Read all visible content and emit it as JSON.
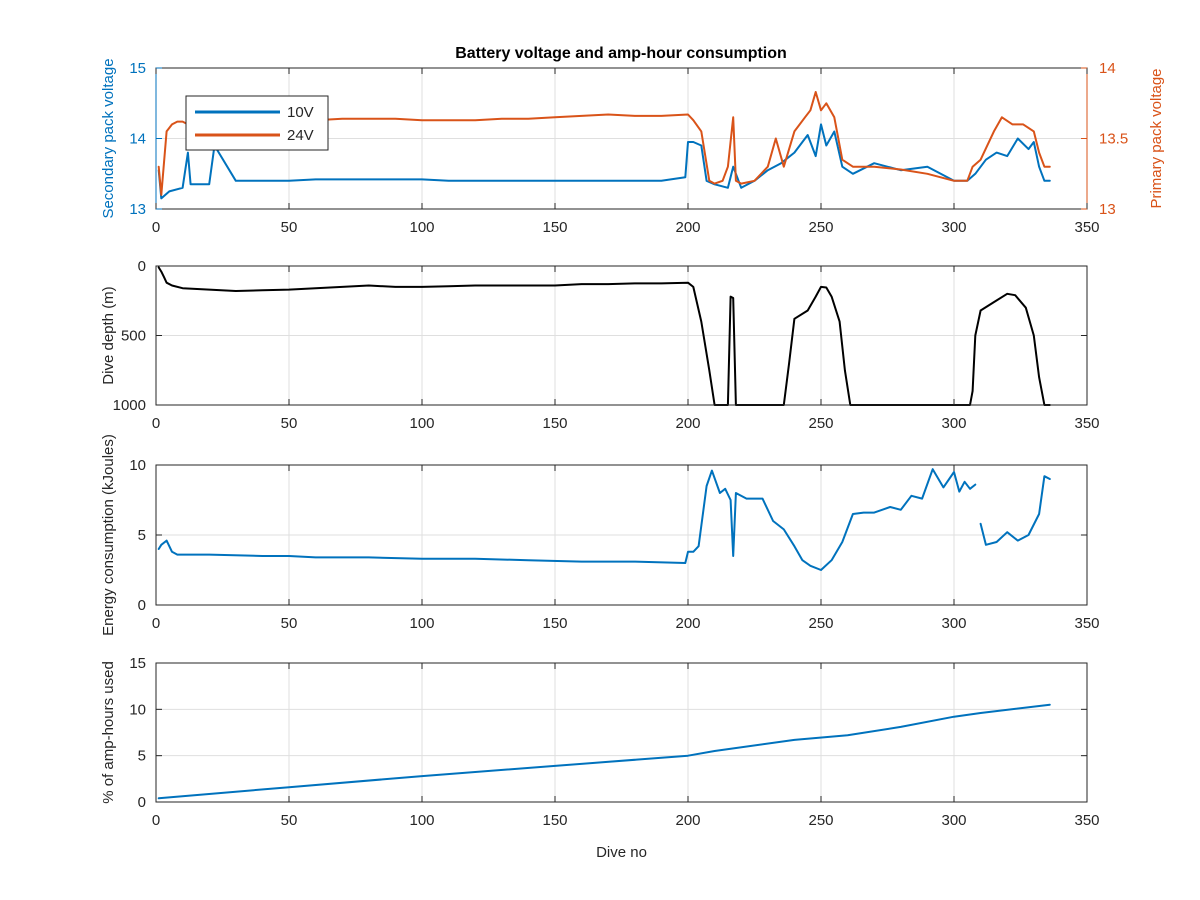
{
  "figure_title": "Battery voltage and amp-hour consumption",
  "colors": {
    "blue": "#0072bd",
    "orange": "#d95319",
    "black": "#000000",
    "axis": "#262626",
    "grid": "#dfdfdf"
  },
  "chart_data": [
    {
      "type": "line",
      "title": "Battery voltage and amp-hour consumption",
      "xlabel": "",
      "ylabel_left": "Secondary pack voltage",
      "ylabel_right": "Primary pack voltage",
      "xlim": [
        0,
        350
      ],
      "ylim_left": [
        13,
        15
      ],
      "ylim_right": [
        13,
        14
      ],
      "x_ticks": [
        "0",
        "50",
        "100",
        "150",
        "200",
        "250",
        "300",
        "350"
      ],
      "y_ticks_left": [
        "13",
        "14",
        "15"
      ],
      "y_ticks_right": [
        "13",
        "13.5",
        "14"
      ],
      "grid": true,
      "legend": {
        "location": "top-left",
        "entries": [
          "10V",
          "24V"
        ]
      },
      "series": [
        {
          "name": "10V",
          "axis": "left",
          "color": "#0072bd",
          "x": [
            1,
            2,
            5,
            10,
            12,
            13,
            20,
            22,
            30,
            40,
            50,
            60,
            70,
            80,
            90,
            100,
            110,
            120,
            130,
            140,
            150,
            160,
            170,
            180,
            190,
            199,
            200,
            202,
            205,
            207,
            210,
            215,
            217,
            220,
            225,
            230,
            235,
            240,
            245,
            248,
            250,
            252,
            255,
            258,
            262,
            270,
            280,
            290,
            300,
            305,
            308,
            312,
            316,
            320,
            324,
            328,
            330,
            332,
            334,
            336
          ],
          "y": [
            13.55,
            13.15,
            13.25,
            13.3,
            13.8,
            13.35,
            13.35,
            13.9,
            13.4,
            13.4,
            13.4,
            13.42,
            13.42,
            13.42,
            13.42,
            13.42,
            13.4,
            13.4,
            13.4,
            13.4,
            13.4,
            13.4,
            13.4,
            13.4,
            13.4,
            13.45,
            13.95,
            13.95,
            13.9,
            13.4,
            13.35,
            13.3,
            13.6,
            13.3,
            13.4,
            13.55,
            13.65,
            13.8,
            14.05,
            13.75,
            14.2,
            13.9,
            14.1,
            13.6,
            13.5,
            13.65,
            13.55,
            13.6,
            13.4,
            13.4,
            13.5,
            13.7,
            13.8,
            13.75,
            14.0,
            13.85,
            13.95,
            13.6,
            13.4,
            13.4
          ]
        },
        {
          "name": "24V",
          "axis": "right",
          "color": "#d95319",
          "x": [
            1,
            2,
            4,
            6,
            8,
            10,
            12,
            14,
            20,
            30,
            40,
            50,
            60,
            70,
            80,
            90,
            100,
            110,
            120,
            130,
            140,
            150,
            160,
            170,
            180,
            190,
            200,
            202,
            205,
            208,
            210,
            213,
            215,
            217,
            218,
            220,
            225,
            230,
            233,
            236,
            240,
            244,
            246,
            248,
            250,
            252,
            255,
            258,
            262,
            270,
            280,
            290,
            300,
            305,
            307,
            310,
            315,
            318,
            322,
            326,
            330,
            332,
            334,
            336
          ],
          "y": [
            13.3,
            13.1,
            13.55,
            13.6,
            13.62,
            13.62,
            13.6,
            13.6,
            13.6,
            13.61,
            13.62,
            13.62,
            13.63,
            13.64,
            13.64,
            13.64,
            13.63,
            13.63,
            13.63,
            13.64,
            13.64,
            13.65,
            13.66,
            13.67,
            13.66,
            13.66,
            13.67,
            13.63,
            13.55,
            13.2,
            13.18,
            13.2,
            13.3,
            13.65,
            13.2,
            13.18,
            13.2,
            13.3,
            13.5,
            13.3,
            13.55,
            13.65,
            13.7,
            13.83,
            13.7,
            13.75,
            13.65,
            13.35,
            13.3,
            13.3,
            13.28,
            13.25,
            13.2,
            13.2,
            13.3,
            13.35,
            13.55,
            13.65,
            13.6,
            13.6,
            13.55,
            13.4,
            13.3,
            13.3
          ]
        }
      ]
    },
    {
      "type": "line",
      "title": "",
      "xlabel": "",
      "ylabel": "Dive depth (m)",
      "xlim": [
        0,
        350
      ],
      "ylim": [
        0,
        1000
      ],
      "y_reversed": true,
      "x_ticks": [
        "0",
        "50",
        "100",
        "150",
        "200",
        "250",
        "300",
        "350"
      ],
      "y_ticks": [
        "0",
        "500",
        "1000"
      ],
      "grid": true,
      "series": [
        {
          "color": "#000000",
          "x": [
            1,
            2,
            3,
            4,
            6,
            10,
            20,
            30,
            40,
            50,
            60,
            70,
            80,
            90,
            100,
            110,
            120,
            130,
            140,
            150,
            160,
            170,
            180,
            190,
            200,
            202,
            205,
            208,
            210,
            213,
            215,
            216,
            217,
            218,
            220,
            230,
            236,
            238,
            240,
            245,
            248,
            250,
            252,
            254,
            257,
            259,
            261,
            270,
            280,
            290,
            300,
            306,
            307,
            308,
            310,
            315,
            320,
            323,
            327,
            330,
            332,
            334,
            336
          ],
          "y": [
            10,
            40,
            80,
            120,
            140,
            160,
            170,
            180,
            175,
            170,
            160,
            150,
            140,
            150,
            150,
            145,
            140,
            140,
            140,
            140,
            130,
            130,
            125,
            125,
            120,
            150,
            400,
            750,
            1000,
            1000,
            1000,
            220,
            230,
            1000,
            1000,
            1000,
            1000,
            700,
            380,
            320,
            220,
            150,
            155,
            220,
            400,
            750,
            1000,
            1000,
            1000,
            1000,
            1000,
            1000,
            900,
            500,
            320,
            260,
            200,
            210,
            300,
            500,
            800,
            1000,
            1000
          ]
        }
      ]
    },
    {
      "type": "line",
      "title": "",
      "xlabel": "",
      "ylabel": "Energy consumption (kJoules)",
      "xlim": [
        0,
        350
      ],
      "ylim": [
        0,
        10
      ],
      "x_ticks": [
        "0",
        "50",
        "100",
        "150",
        "200",
        "250",
        "300",
        "350"
      ],
      "y_ticks": [
        "0",
        "5",
        "10"
      ],
      "grid": true,
      "series": [
        {
          "color": "#0072bd",
          "x": [
            1,
            2,
            4,
            6,
            8,
            20,
            40,
            50,
            60,
            80,
            100,
            120,
            140,
            160,
            180,
            199,
            200,
            202,
            204,
            207,
            209,
            212,
            214,
            216,
            217,
            218,
            222,
            228,
            232,
            236,
            240,
            243,
            246,
            250,
            254,
            258,
            262,
            266,
            270,
            276,
            280,
            284,
            288,
            292,
            296,
            300,
            302,
            304,
            306,
            308,
            null,
            310,
            312,
            316,
            320,
            324,
            328,
            332,
            334,
            336
          ],
          "y": [
            4.0,
            4.3,
            4.6,
            3.8,
            3.6,
            3.6,
            3.5,
            3.5,
            3.4,
            3.4,
            3.3,
            3.3,
            3.2,
            3.1,
            3.1,
            3.0,
            3.8,
            3.8,
            4.2,
            8.5,
            9.6,
            8.0,
            8.3,
            7.5,
            3.5,
            8.0,
            7.6,
            7.6,
            6.0,
            5.4,
            4.2,
            3.2,
            2.8,
            2.5,
            3.2,
            4.5,
            6.5,
            6.6,
            6.6,
            7.0,
            6.8,
            7.8,
            7.6,
            9.7,
            8.4,
            9.5,
            8.1,
            8.8,
            8.3,
            8.6,
            null,
            5.8,
            4.3,
            4.5,
            5.2,
            4.6,
            5.0,
            6.5,
            9.2,
            9.0
          ]
        }
      ]
    },
    {
      "type": "line",
      "title": "",
      "xlabel": "Dive no",
      "ylabel": "% of amp-hours used",
      "xlim": [
        0,
        350
      ],
      "ylim": [
        0,
        15
      ],
      "x_ticks": [
        "0",
        "50",
        "100",
        "150",
        "200",
        "250",
        "300",
        "350"
      ],
      "y_ticks": [
        "0",
        "5",
        "10",
        "15"
      ],
      "grid": true,
      "series": [
        {
          "color": "#0072bd",
          "x": [
            1,
            50,
            100,
            150,
            200,
            210,
            240,
            260,
            280,
            300,
            310,
            336
          ],
          "y": [
            0.4,
            1.6,
            2.8,
            3.9,
            5.0,
            5.5,
            6.7,
            7.2,
            8.1,
            9.2,
            9.6,
            10.5
          ]
        }
      ]
    }
  ]
}
